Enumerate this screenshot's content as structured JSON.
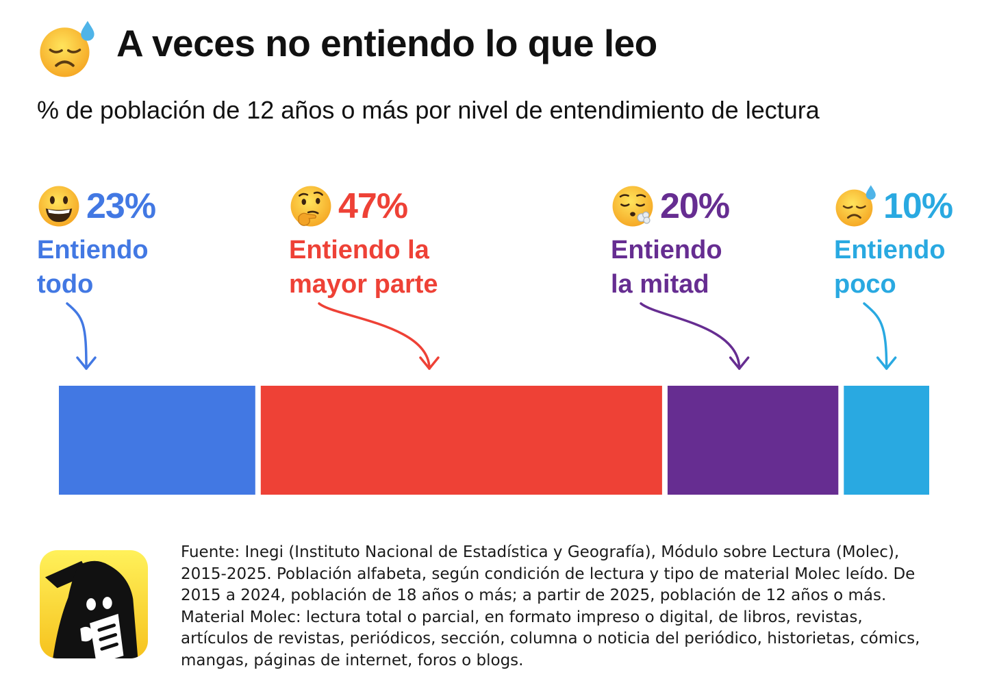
{
  "header": {
    "icon": "sad-sweat-face-icon",
    "title": "A veces no entiendo lo que leo",
    "subtitle": "% de población de 12 años o más por nivel de entendimiento de lectura"
  },
  "chart_data": {
    "type": "bar",
    "orientation": "stacked-horizontal",
    "title": "A veces no entiendo lo que leo",
    "subtitle": "% de población de 12 años o más por nivel de entendimiento de lectura",
    "xlabel": "",
    "ylabel": "",
    "xlim": [
      0,
      100
    ],
    "grid": false,
    "categories": [
      "Entiendo todo",
      "Entiendo la mayor parte",
      "Entiendo la mitad",
      "Entiendo poco"
    ],
    "values": [
      23,
      47,
      20,
      10
    ],
    "series": [
      {
        "name": "Entiendo todo",
        "value": 23,
        "value_label": "23%",
        "label_lines": [
          "Entiendo",
          "todo"
        ],
        "color": "#4278E3",
        "icon": "grinning-face-icon"
      },
      {
        "name": "Entiendo la mayor parte",
        "value": 47,
        "value_label": "47%",
        "label_lines": [
          "Entiendo la",
          "mayor parte"
        ],
        "color": "#EE4136",
        "icon": "thinking-face-icon"
      },
      {
        "name": "Entiendo la mitad",
        "value": 20,
        "value_label": "20%",
        "label_lines": [
          "Entiendo",
          "la mitad"
        ],
        "color": "#662D91",
        "icon": "exhaling-face-icon"
      },
      {
        "name": "Entiendo poco",
        "value": 10,
        "value_label": "10%",
        "label_lines": [
          "Entiendo",
          "poco"
        ],
        "color": "#29A9E1",
        "icon": "sad-sweat-face-icon"
      }
    ]
  },
  "footer": {
    "logo_icon": "newspaper-reader-logo-icon",
    "source_text": "Fuente: Inegi (Instituto Nacional de Estadística y Geografía), Módulo sobre Lectura (Molec), 2015-2025. Población alfabeta, según condición de lectura y tipo de material Molec leído. De 2015 a 2024, población de 18 años o más; a partir de 2025, población de 12 años o más. Material Molec: lectura total o parcial, en formato impreso o digital, de libros, revistas, artículos de revistas, periódicos, sección, columna o noticia del periódico, historietas, cómics, mangas, páginas de internet, foros o blogs."
  }
}
